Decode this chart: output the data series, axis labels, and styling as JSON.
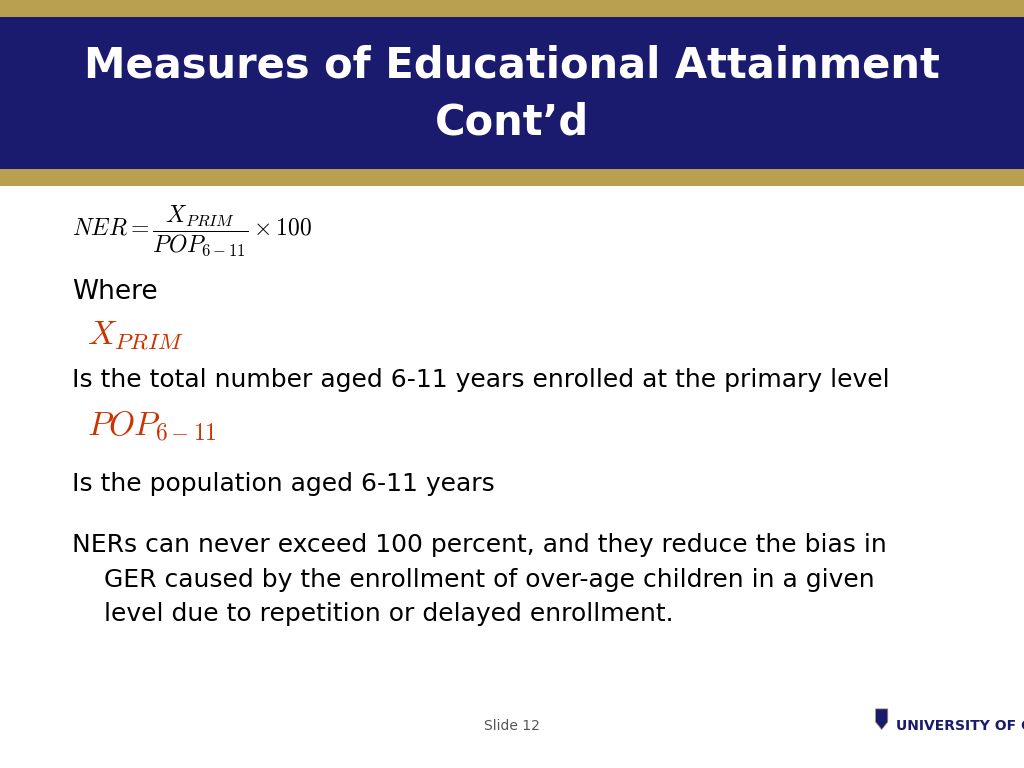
{
  "title_line1": "Measures of Educational Attainment",
  "title_line2": "Cont’d",
  "title_bg_color": "#1a1a6e",
  "title_border_color": "#b8a050",
  "title_text_color": "#ffffff",
  "slide_bg_color": "#ffffff",
  "slide_number": "Slide 12",
  "university_text": "UNIVERSITY OF GHANA",
  "body_text_color": "#000000",
  "x_prim_color": "#cc3300",
  "pop_color": "#cc3300",
  "where_text": "Where",
  "x_prim_desc": "Is the total number aged 6-11 years enrolled at the primary level",
  "pop_desc": "Is the population aged 6-11 years",
  "ners_line1": "NERs can never exceed 100 percent, and they reduce the bias in",
  "ners_line2": "    GER caused by the enrollment of over-age children in a given",
  "ners_line3": "    level due to repetition or delayed enrollment.",
  "footer_slide_color": "#555555",
  "university_color": "#1a1a6e"
}
